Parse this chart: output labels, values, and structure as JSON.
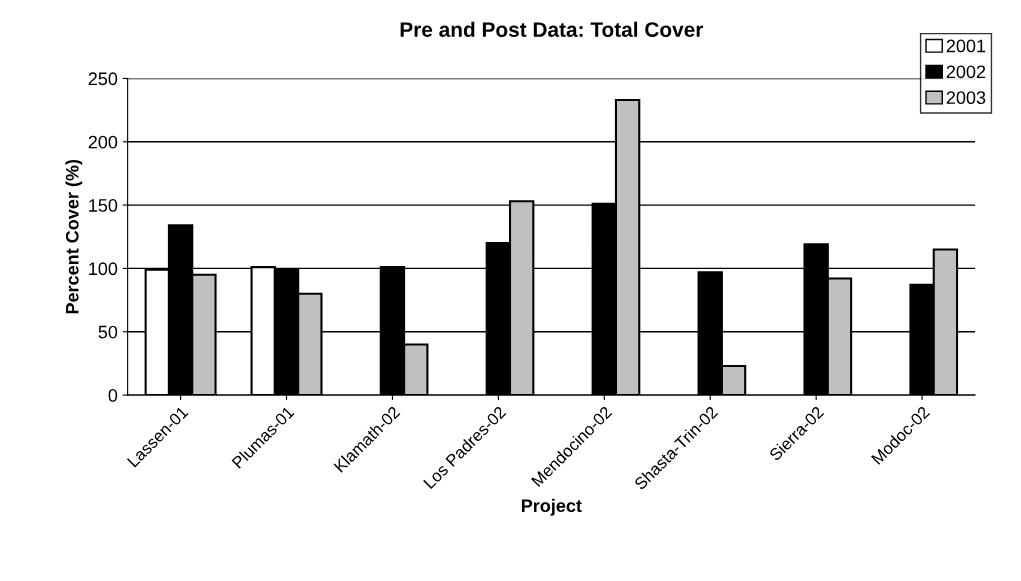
{
  "chart_data": {
    "type": "bar",
    "title": "Pre and Post Data: Total Cover",
    "xlabel": "Project",
    "ylabel": "Percent Cover (%)",
    "categories": [
      "Lassen-01",
      "Plumas-01",
      "Klamath-02",
      "Los Padres-02",
      "Mendocino-02",
      "Shasta-Trin-02",
      "Sierra-02",
      "Modoc-02"
    ],
    "series": [
      {
        "name": "2001",
        "color": "#ffffff",
        "values": [
          99,
          101,
          null,
          null,
          null,
          null,
          null,
          null
        ]
      },
      {
        "name": "2002",
        "color": "#000000",
        "values": [
          134,
          99,
          101,
          120,
          151,
          97,
          119,
          87
        ]
      },
      {
        "name": "2003",
        "color": "#c0c0c0",
        "values": [
          95,
          80,
          40,
          153,
          233,
          23,
          92,
          115
        ]
      }
    ],
    "ylim": [
      0,
      250
    ],
    "yticks": [
      0,
      50,
      100,
      150,
      200,
      250
    ],
    "grid": "y",
    "legend": "top right"
  }
}
